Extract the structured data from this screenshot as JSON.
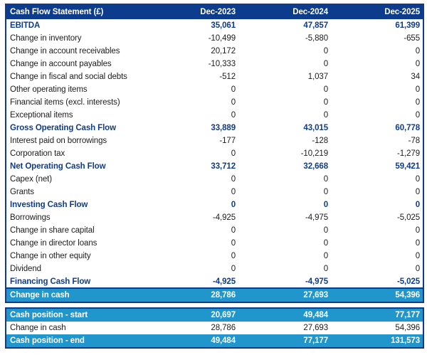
{
  "colors": {
    "navy": "#0e3c8c",
    "cyan": "#2196cd",
    "text_dark": "#1c1c1c",
    "white": "#ffffff"
  },
  "chart_data": {
    "type": "table",
    "title": "Cash Flow Statement (£)",
    "columns": [
      "Dec-2023",
      "Dec-2024",
      "Dec-2025"
    ],
    "main_rows": [
      {
        "label": "EBITDA",
        "values": [
          "35,061",
          "47,857",
          "61,399"
        ],
        "style": "section"
      },
      {
        "label": "Change in inventory",
        "values": [
          "-10,499",
          "-5,880",
          "-655"
        ],
        "style": "normal"
      },
      {
        "label": "Change in account receivables",
        "values": [
          "20,172",
          "0",
          "0"
        ],
        "style": "normal"
      },
      {
        "label": "Change in account payables",
        "values": [
          "-10,333",
          "0",
          "0"
        ],
        "style": "normal"
      },
      {
        "label": "Change in fiscal and social debts",
        "values": [
          "-512",
          "1,037",
          "34"
        ],
        "style": "normal"
      },
      {
        "label": "Other operating items",
        "values": [
          "0",
          "0",
          "0"
        ],
        "style": "normal"
      },
      {
        "label": "Financial items (excl. interests)",
        "values": [
          "0",
          "0",
          "0"
        ],
        "style": "normal"
      },
      {
        "label": "Exceptional items",
        "values": [
          "0",
          "0",
          "0"
        ],
        "style": "normal"
      },
      {
        "label": "Gross Operating Cash Flow",
        "values": [
          "33,889",
          "43,015",
          "60,778"
        ],
        "style": "section"
      },
      {
        "label": "Interest paid on borrowings",
        "values": [
          "-177",
          "-128",
          "-78"
        ],
        "style": "normal"
      },
      {
        "label": "Corporation tax",
        "values": [
          "0",
          "-10,219",
          "-1,279"
        ],
        "style": "normal"
      },
      {
        "label": "Net Operating Cash Flow",
        "values": [
          "33,712",
          "32,668",
          "59,421"
        ],
        "style": "section"
      },
      {
        "label": "Capex (net)",
        "values": [
          "0",
          "0",
          "0"
        ],
        "style": "normal"
      },
      {
        "label": "Grants",
        "values": [
          "0",
          "0",
          "0"
        ],
        "style": "normal"
      },
      {
        "label": "Investing Cash Flow",
        "values": [
          "0",
          "0",
          "0"
        ],
        "style": "section"
      },
      {
        "label": "Borrowings",
        "values": [
          "-4,925",
          "-4,975",
          "-5,025"
        ],
        "style": "normal"
      },
      {
        "label": "Change in share capital",
        "values": [
          "0",
          "0",
          "0"
        ],
        "style": "normal"
      },
      {
        "label": "Change in director loans",
        "values": [
          "0",
          "0",
          "0"
        ],
        "style": "normal"
      },
      {
        "label": "Change in other equity",
        "values": [
          "0",
          "0",
          "0"
        ],
        "style": "normal"
      },
      {
        "label": "Dividend",
        "values": [
          "0",
          "0",
          "0"
        ],
        "style": "normal"
      },
      {
        "label": "Financing Cash Flow",
        "values": [
          "-4,925",
          "-4,975",
          "-5,025"
        ],
        "style": "section"
      },
      {
        "label": "Change in cash",
        "values": [
          "28,786",
          "27,693",
          "54,396"
        ],
        "style": "highlight"
      }
    ],
    "summary_rows": [
      {
        "label": "Cash position - start",
        "values": [
          "20,697",
          "49,484",
          "77,177"
        ],
        "style": "highlight"
      },
      {
        "label": "Change in cash",
        "values": [
          "28,786",
          "27,693",
          "54,396"
        ],
        "style": "normal"
      },
      {
        "label": "Cash position - end",
        "values": [
          "49,484",
          "77,177",
          "131,573"
        ],
        "style": "highlight"
      }
    ]
  }
}
